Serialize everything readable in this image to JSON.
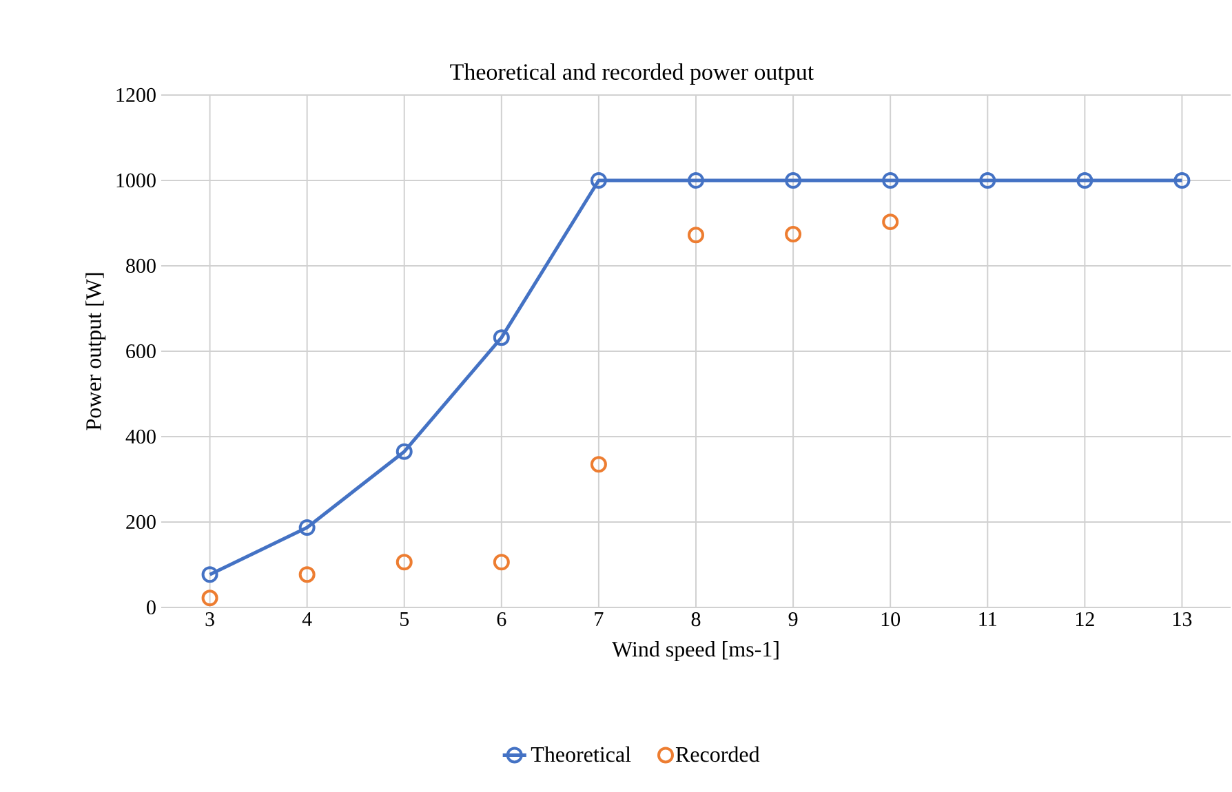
{
  "chart_data": {
    "type": "line",
    "title": "Theoretical and recorded power output",
    "xlabel": "Wind speed [ms-1]",
    "ylabel": "Power output [W]",
    "categories": [
      "3",
      "4",
      "5",
      "6",
      "7",
      "8",
      "9",
      "10",
      "11",
      "12",
      "13"
    ],
    "series": [
      {
        "name": "Theoretical",
        "color": "#4472c4",
        "values": [
          77,
          187,
          365,
          632,
          1000,
          1000,
          1000,
          1000,
          1000,
          1000,
          1000
        ]
      },
      {
        "name": "Recorded",
        "type": "scatter",
        "color": "#ed7d31",
        "values": [
          22,
          77,
          106,
          106,
          335,
          872,
          874,
          903,
          null,
          null,
          null
        ]
      }
    ],
    "ylim": [
      0,
      1200
    ],
    "yticks": [
      0,
      200,
      400,
      600,
      800,
      1000,
      1200
    ],
    "grid": true,
    "legend": "bottom",
    "marker": "circle"
  }
}
